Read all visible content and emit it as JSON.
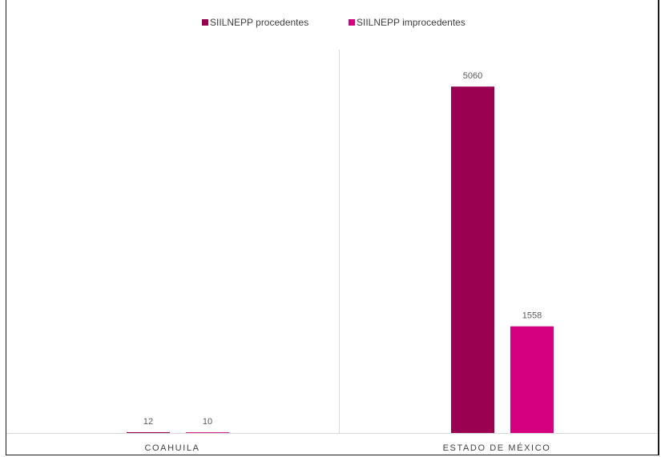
{
  "chart_data": {
    "type": "bar",
    "categories": [
      "COAHUILA",
      "ESTADO DE MÉXICO"
    ],
    "series": [
      {
        "name": "SIILNEPP procedentes",
        "values": [
          12,
          5060
        ],
        "color": "#990050"
      },
      {
        "name": "SIILNEPP improcedentes",
        "values": [
          10,
          1558
        ],
        "color": "#d4007d"
      }
    ],
    "ylim": [
      0,
      5600
    ],
    "grid": false,
    "legend_position": "top-center",
    "data_labels": true
  }
}
